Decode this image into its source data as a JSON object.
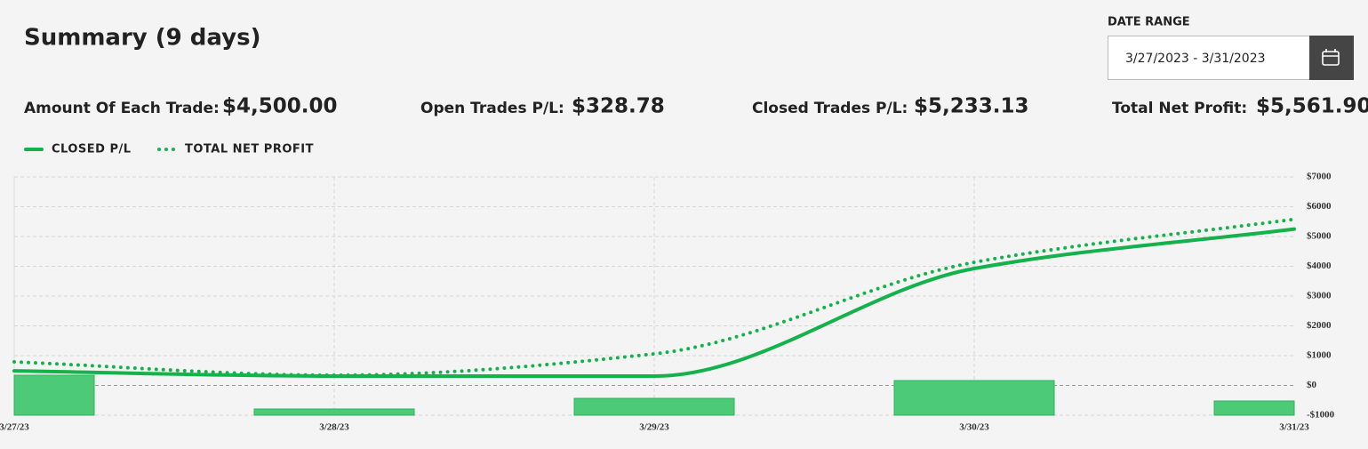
{
  "header": {
    "title": "Summary (9 days)"
  },
  "date_range": {
    "label": "DATE RANGE",
    "value": "3/27/2023 - 3/31/2023"
  },
  "stats": [
    {
      "label": "Amount Of Each Trade:",
      "value": "$4,500.00"
    },
    {
      "label": "Open Trades P/L:",
      "value": "$328.78"
    },
    {
      "label": "Closed Trades P/L:",
      "value": "$5,233.13"
    },
    {
      "label": "Total Net Profit:",
      "value": "$5,561.90"
    }
  ],
  "chart_data": {
    "type": "line",
    "x": [
      "3/27/23",
      "3/28/23",
      "3/29/23",
      "3/30/23",
      "3/31/23"
    ],
    "series": [
      {
        "name": "CLOSED P/L",
        "color": "#13b24b",
        "style": "solid",
        "values": [
          490,
          313,
          313,
          3925,
          5250
        ]
      },
      {
        "name": "TOTAL NET PROFIT",
        "color": "#13b24b",
        "style": "dotted",
        "values": [
          790,
          343,
          1060,
          4134,
          5580
        ]
      },
      {
        "type": "bar",
        "color": "#4cca78",
        "values": [
          343,
          -791,
          -433,
          164,
          -522
        ]
      }
    ],
    "ylim": [
      -1000,
      7000
    ],
    "yticks": [
      {
        "value": 7000,
        "label": "$7000"
      },
      {
        "value": 6000,
        "label": "$6000"
      },
      {
        "value": 5000,
        "label": "$5000"
      },
      {
        "value": 4000,
        "label": "$4000"
      },
      {
        "value": 3000,
        "label": "$3000"
      },
      {
        "value": 2000,
        "label": "$2000"
      },
      {
        "value": 1000,
        "label": "$1000"
      },
      {
        "value": 0,
        "label": "$0"
      },
      {
        "value": -1000,
        "label": "-$1000"
      }
    ],
    "grid": true
  }
}
